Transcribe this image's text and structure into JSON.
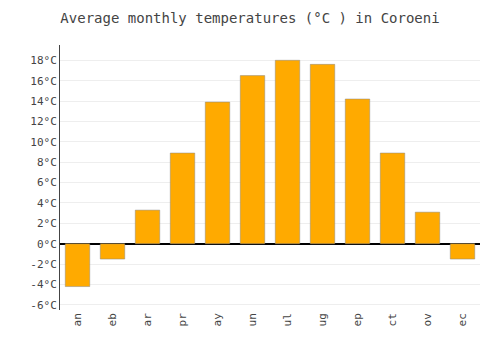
{
  "chart_data": {
    "type": "bar",
    "title": "Average monthly temperatures (°C ) in Coroeni",
    "categories": [
      "an",
      "eb",
      "ar",
      "pr",
      "ay",
      "un",
      "ul",
      "ug",
      "ep",
      "ct",
      "ov",
      "ec"
    ],
    "values": [
      -4.2,
      -1.5,
      3.3,
      8.9,
      13.9,
      16.5,
      18.0,
      17.6,
      14.2,
      8.9,
      3.1,
      -1.5
    ],
    "color": "#FFAA00",
    "ylim": [
      -6.5,
      19.5
    ],
    "yticks": [
      {
        "value": -6,
        "label": "-6°C"
      },
      {
        "value": -4,
        "label": "-4°C"
      },
      {
        "value": -2,
        "label": "-2°C"
      },
      {
        "value": 0,
        "label": "0°C"
      },
      {
        "value": 2,
        "label": "2°C"
      },
      {
        "value": 4,
        "label": "4°C"
      },
      {
        "value": 6,
        "label": "6°C"
      },
      {
        "value": 8,
        "label": "8°C"
      },
      {
        "value": 10,
        "label": "10°C"
      },
      {
        "value": 12,
        "label": "12°C"
      },
      {
        "value": 14,
        "label": "14°C"
      },
      {
        "value": 16,
        "label": "16°C"
      },
      {
        "value": 18,
        "label": "18°C"
      }
    ],
    "grid": true
  }
}
